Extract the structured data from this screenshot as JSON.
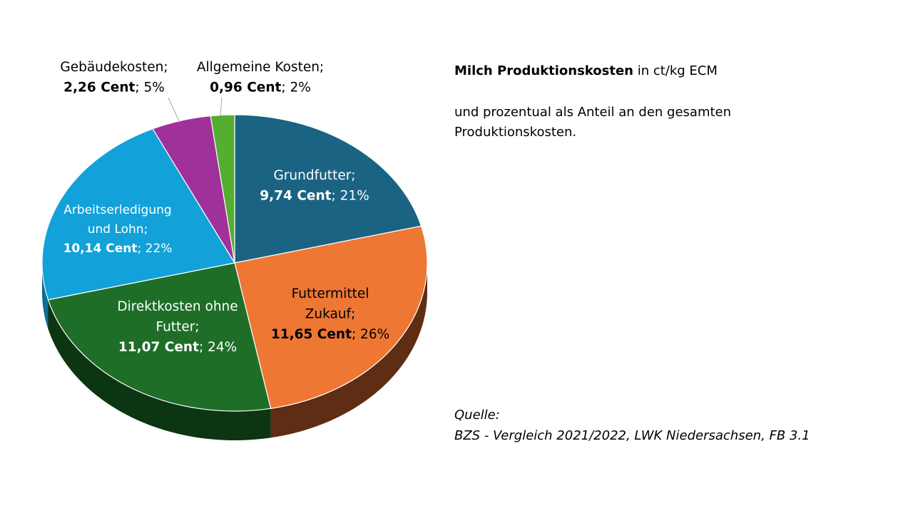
{
  "title": {
    "bold": "Milch Produktionskosten",
    "rest": " in ct/kg ECM"
  },
  "description": "und prozentual als Anteil an den gesamten Produktionskosten.",
  "source": {
    "label": "Quelle:",
    "text": "BZS - Vergleich 2021/2022, LWK Niedersachsen, FB 3.1"
  },
  "chart_data": {
    "type": "pie",
    "style": "3d",
    "unit": "ct/kg ECM",
    "slices": [
      {
        "name": "Grundfutter",
        "label_lines": [
          "Grundfutter;"
        ],
        "value": 9.74,
        "value_text": "9,74 Cent",
        "percent": 21,
        "percent_text": "21%",
        "color": "#1A6383",
        "side_color": "#0F3D52",
        "text_color": "#FFFFFF",
        "label_position": "inside"
      },
      {
        "name": "Futtermittel Zukauf",
        "label_lines": [
          "Futtermittel",
          "Zukauf;"
        ],
        "value": 11.65,
        "value_text": "11,65 Cent",
        "percent": 26,
        "percent_text": "26%",
        "color": "#EE7734",
        "side_color": "#5F2C14",
        "text_color": "#000000",
        "label_position": "inside"
      },
      {
        "name": "Direktkosten ohne Futter",
        "label_lines": [
          "Direktkosten ohne",
          "Futter;"
        ],
        "value": 11.07,
        "value_text": "11,07 Cent",
        "percent": 24,
        "percent_text": "24%",
        "color": "#1E6E28",
        "side_color": "#0C3511",
        "text_color": "#FFFFFF",
        "label_position": "inside"
      },
      {
        "name": "Arbeitserledigung und Lohn",
        "label_lines": [
          "Arbeitserledigung",
          "und Lohn;"
        ],
        "value": 10.14,
        "value_text": "10,14 Cent",
        "percent": 22,
        "percent_text": "22%",
        "color": "#12A1D9",
        "side_color": "#0B6E95",
        "text_color": "#FFFFFF",
        "label_position": "inside"
      },
      {
        "name": "Gebäudekosten",
        "label_lines": [
          "Gebäudekosten;"
        ],
        "value": 2.26,
        "value_text": "2,26 Cent",
        "percent": 5,
        "percent_text": "5%",
        "color": "#A0309A",
        "side_color": "#5E1A5A",
        "text_color": "#000000",
        "label_position": "outside"
      },
      {
        "name": "Allgemeine Kosten",
        "label_lines": [
          "Allgemeine Kosten;"
        ],
        "value": 0.96,
        "value_text": "0,96 Cent",
        "percent": 2,
        "percent_text": "2%",
        "color": "#53AE32",
        "side_color": "#2E6A1C",
        "text_color": "#000000",
        "label_position": "outside"
      }
    ]
  }
}
